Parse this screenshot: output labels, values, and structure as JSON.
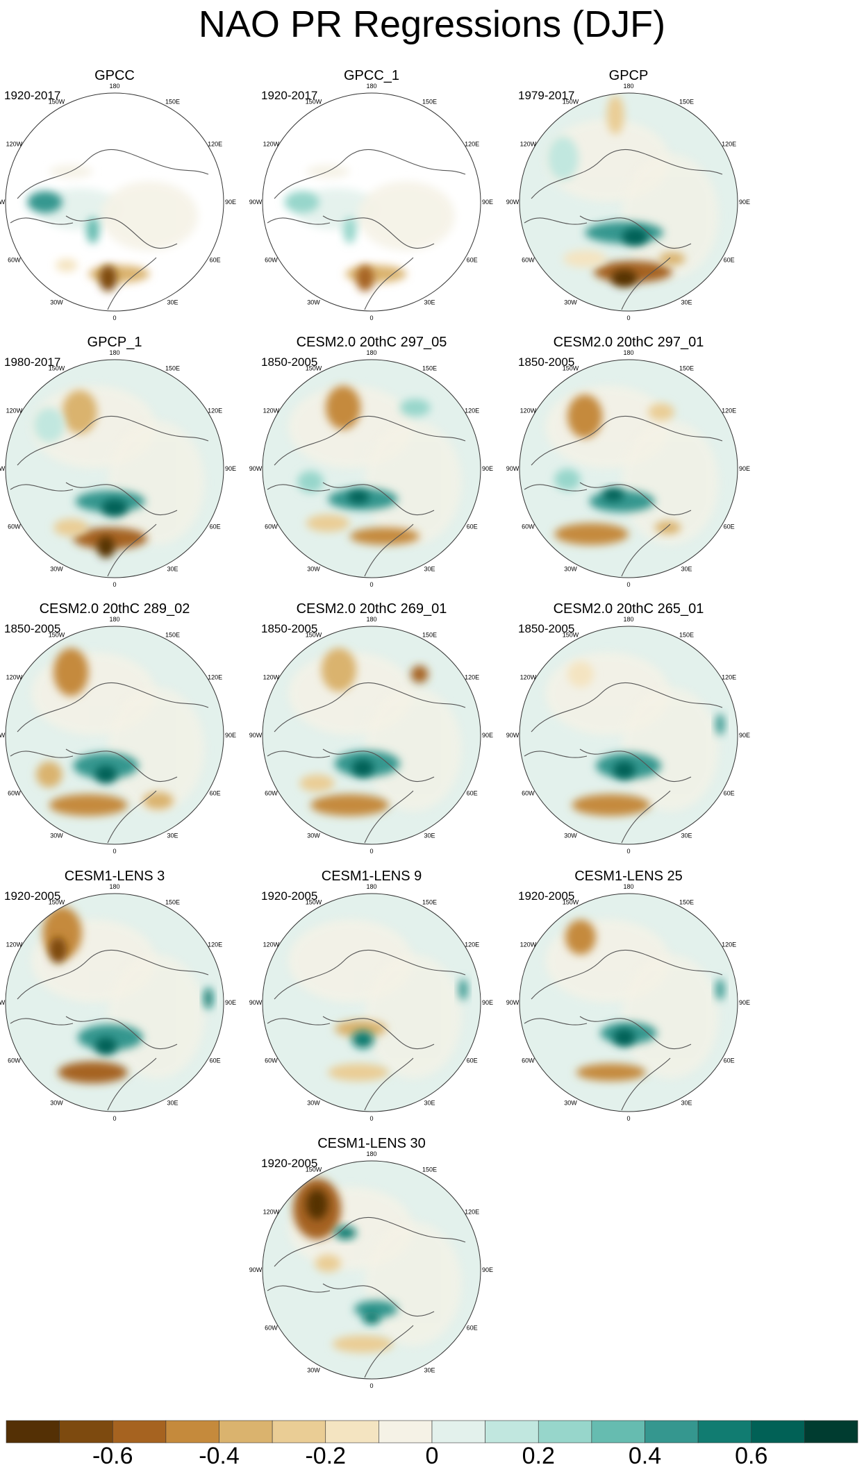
{
  "title": "NAO PR Regressions (DJF)",
  "longitude_labels": [
    "180",
    "150E",
    "120E",
    "90E",
    "60E",
    "30E",
    "0",
    "30W",
    "60W",
    "90W",
    "120W",
    "150W"
  ],
  "palette": [
    "#543005",
    "#7d4a0f",
    "#a66320",
    "#c58a3c",
    "#dab36e",
    "#eacd95",
    "#f4e4c1",
    "#f5f2e6",
    "#e3f1ec",
    "#c1e7df",
    "#97d6cb",
    "#66bcb0",
    "#35978f",
    "#117c71",
    "#016156",
    "#003c30"
  ],
  "colorbar": {
    "tick_labels": [
      "-0.6",
      "-0.4",
      "-0.2",
      "0",
      "0.2",
      "0.4",
      "0.6"
    ]
  },
  "panels": [
    {
      "title": "GPCC",
      "period": "1920-2017",
      "masked": true,
      "blobs": [
        [
          0.18,
          0.5,
          0.08,
          0.05,
          12
        ],
        [
          0.3,
          0.36,
          0.1,
          0.03,
          7
        ],
        [
          0.52,
          0.83,
          0.14,
          0.04,
          4
        ],
        [
          0.47,
          0.85,
          0.04,
          0.06,
          1
        ],
        [
          0.4,
          0.63,
          0.03,
          0.06,
          11
        ],
        [
          0.28,
          0.79,
          0.05,
          0.03,
          6
        ]
      ]
    },
    {
      "title": "GPCC_1",
      "period": "1920-2017",
      "masked": true,
      "blobs": [
        [
          0.18,
          0.5,
          0.08,
          0.05,
          10
        ],
        [
          0.3,
          0.36,
          0.1,
          0.03,
          7
        ],
        [
          0.52,
          0.83,
          0.14,
          0.04,
          4
        ],
        [
          0.47,
          0.85,
          0.04,
          0.06,
          2
        ],
        [
          0.4,
          0.63,
          0.03,
          0.06,
          10
        ]
      ]
    },
    {
      "title": "GPCP",
      "period": "1979-2017",
      "masked": false,
      "blobs": [
        [
          0.44,
          0.1,
          0.04,
          0.09,
          5
        ],
        [
          0.2,
          0.3,
          0.07,
          0.1,
          9
        ],
        [
          0.48,
          0.64,
          0.18,
          0.05,
          12
        ],
        [
          0.53,
          0.66,
          0.06,
          0.04,
          14
        ],
        [
          0.52,
          0.82,
          0.18,
          0.05,
          2
        ],
        [
          0.48,
          0.85,
          0.06,
          0.04,
          0
        ],
        [
          0.7,
          0.76,
          0.06,
          0.03,
          4
        ],
        [
          0.3,
          0.76,
          0.1,
          0.04,
          6
        ]
      ]
    },
    {
      "title": "GPCP_1",
      "period": "1980-2017",
      "masked": false,
      "blobs": [
        [
          0.34,
          0.24,
          0.08,
          0.1,
          4
        ],
        [
          0.2,
          0.3,
          0.07,
          0.08,
          9
        ],
        [
          0.48,
          0.65,
          0.16,
          0.05,
          12
        ],
        [
          0.5,
          0.68,
          0.06,
          0.04,
          14
        ],
        [
          0.48,
          0.82,
          0.17,
          0.05,
          2
        ],
        [
          0.46,
          0.86,
          0.04,
          0.05,
          0
        ],
        [
          0.3,
          0.77,
          0.08,
          0.04,
          5
        ]
      ]
    },
    {
      "title": "CESM2.0 20thC 297_05",
      "period": "1850-2005",
      "masked": false,
      "blobs": [
        [
          0.37,
          0.22,
          0.08,
          0.1,
          3
        ],
        [
          0.7,
          0.22,
          0.07,
          0.04,
          10
        ],
        [
          0.46,
          0.64,
          0.16,
          0.05,
          12
        ],
        [
          0.44,
          0.63,
          0.05,
          0.03,
          14
        ],
        [
          0.56,
          0.81,
          0.16,
          0.04,
          3
        ],
        [
          0.3,
          0.75,
          0.1,
          0.04,
          5
        ],
        [
          0.22,
          0.56,
          0.06,
          0.05,
          10
        ]
      ]
    },
    {
      "title": "CESM2.0 20thC 297_01",
      "period": "1850-2005",
      "masked": false,
      "blobs": [
        [
          0.3,
          0.26,
          0.08,
          0.1,
          3
        ],
        [
          0.65,
          0.24,
          0.06,
          0.04,
          5
        ],
        [
          0.47,
          0.65,
          0.15,
          0.05,
          12
        ],
        [
          0.43,
          0.62,
          0.05,
          0.03,
          14
        ],
        [
          0.33,
          0.8,
          0.17,
          0.05,
          3
        ],
        [
          0.68,
          0.77,
          0.06,
          0.03,
          4
        ],
        [
          0.22,
          0.55,
          0.06,
          0.05,
          10
        ]
      ]
    },
    {
      "title": "CESM2.0 20thC 289_02",
      "period": "1850-2005",
      "masked": false,
      "blobs": [
        [
          0.3,
          0.21,
          0.08,
          0.11,
          3
        ],
        [
          0.46,
          0.64,
          0.15,
          0.06,
          12
        ],
        [
          0.46,
          0.68,
          0.05,
          0.04,
          14
        ],
        [
          0.38,
          0.82,
          0.18,
          0.05,
          3
        ],
        [
          0.2,
          0.68,
          0.06,
          0.06,
          4
        ],
        [
          0.7,
          0.8,
          0.07,
          0.04,
          4
        ]
      ]
    },
    {
      "title": "CESM2.0 20thC 269_01",
      "period": "1850-2005",
      "masked": false,
      "blobs": [
        [
          0.35,
          0.2,
          0.08,
          0.1,
          4
        ],
        [
          0.72,
          0.22,
          0.04,
          0.04,
          2
        ],
        [
          0.48,
          0.63,
          0.15,
          0.06,
          12
        ],
        [
          0.46,
          0.65,
          0.05,
          0.04,
          14
        ],
        [
          0.4,
          0.82,
          0.18,
          0.05,
          3
        ],
        [
          0.25,
          0.72,
          0.08,
          0.04,
          5
        ]
      ]
    },
    {
      "title": "CESM2.0 20thC 265_01",
      "period": "1850-2005",
      "masked": false,
      "blobs": [
        [
          0.28,
          0.22,
          0.06,
          0.06,
          6
        ],
        [
          0.5,
          0.64,
          0.15,
          0.06,
          12
        ],
        [
          0.48,
          0.66,
          0.05,
          0.04,
          14
        ],
        [
          0.42,
          0.82,
          0.18,
          0.05,
          3
        ],
        [
          0.92,
          0.45,
          0.02,
          0.05,
          12
        ]
      ]
    },
    {
      "title": "CESM1-LENS 3",
      "period": "1920-2005",
      "masked": false,
      "blobs": [
        [
          0.26,
          0.18,
          0.09,
          0.12,
          3
        ],
        [
          0.24,
          0.26,
          0.04,
          0.06,
          1
        ],
        [
          0.48,
          0.66,
          0.15,
          0.06,
          12
        ],
        [
          0.46,
          0.7,
          0.05,
          0.04,
          14
        ],
        [
          0.4,
          0.82,
          0.16,
          0.05,
          2
        ],
        [
          0.93,
          0.48,
          0.02,
          0.05,
          13
        ]
      ]
    },
    {
      "title": "CESM1-LENS 9",
      "period": "1920-2005",
      "masked": false,
      "blobs": [
        [
          0.45,
          0.62,
          0.12,
          0.04,
          4
        ],
        [
          0.46,
          0.67,
          0.05,
          0.04,
          13
        ],
        [
          0.44,
          0.82,
          0.14,
          0.04,
          5
        ],
        [
          0.92,
          0.44,
          0.02,
          0.05,
          12
        ]
      ]
    },
    {
      "title": "CESM1-LENS 25",
      "period": "1920-2005",
      "masked": false,
      "blobs": [
        [
          0.28,
          0.2,
          0.07,
          0.08,
          3
        ],
        [
          0.5,
          0.64,
          0.13,
          0.05,
          12
        ],
        [
          0.48,
          0.66,
          0.05,
          0.04,
          14
        ],
        [
          0.42,
          0.82,
          0.16,
          0.04,
          3
        ],
        [
          0.92,
          0.44,
          0.02,
          0.05,
          12
        ]
      ]
    },
    {
      "title": "CESM1-LENS 30",
      "period": "1920-2005",
      "masked": false,
      "blobs": [
        [
          0.25,
          0.22,
          0.11,
          0.14,
          2
        ],
        [
          0.25,
          0.2,
          0.05,
          0.07,
          0
        ],
        [
          0.38,
          0.33,
          0.05,
          0.03,
          13
        ],
        [
          0.52,
          0.68,
          0.1,
          0.04,
          12
        ],
        [
          0.5,
          0.72,
          0.04,
          0.03,
          13
        ],
        [
          0.46,
          0.84,
          0.14,
          0.04,
          5
        ],
        [
          0.3,
          0.47,
          0.06,
          0.04,
          5
        ]
      ]
    }
  ]
}
